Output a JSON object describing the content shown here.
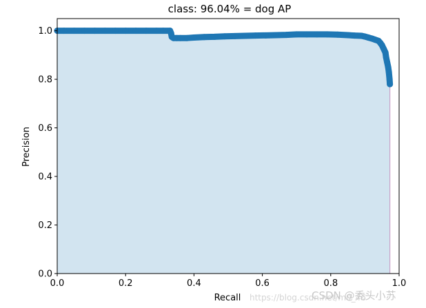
{
  "chart_data": {
    "type": "area",
    "title": "class: 96.04% = dog AP",
    "xlabel": "Recall",
    "ylabel": "Precision",
    "xlim": [
      0.0,
      1.0
    ],
    "ylim": [
      0.0,
      1.05
    ],
    "x_ticks": [
      0.0,
      0.2,
      0.4,
      0.6,
      0.8,
      1.0
    ],
    "y_ticks": [
      0.0,
      0.2,
      0.4,
      0.6,
      0.8,
      1.0
    ],
    "x_tick_labels": [
      "0.0",
      "0.2",
      "0.4",
      "0.6",
      "0.8",
      "1.0"
    ],
    "y_tick_labels": [
      "0.0",
      "0.2",
      "0.4",
      "0.6",
      "0.8",
      "1.0"
    ],
    "grid": false,
    "legend": "none",
    "series": [
      {
        "x": [
          0.0,
          0.02,
          0.05,
          0.08,
          0.11,
          0.14,
          0.17,
          0.2,
          0.23,
          0.26,
          0.29,
          0.31,
          0.33,
          0.333,
          0.335,
          0.34,
          0.35,
          0.36,
          0.38,
          0.4,
          0.43,
          0.46,
          0.49,
          0.52,
          0.55,
          0.58,
          0.61,
          0.64,
          0.67,
          0.7,
          0.73,
          0.76,
          0.79,
          0.82,
          0.85,
          0.87,
          0.89,
          0.9,
          0.91,
          0.92,
          0.93,
          0.94,
          0.945,
          0.95,
          0.955,
          0.96,
          0.962,
          0.965,
          0.968,
          0.97,
          0.972,
          0.973
        ],
        "y": [
          1.0,
          1.0,
          1.0,
          1.0,
          1.0,
          1.0,
          1.0,
          1.0,
          1.0,
          1.0,
          1.0,
          1.0,
          1.0,
          0.99,
          0.975,
          0.97,
          0.97,
          0.97,
          0.97,
          0.972,
          0.974,
          0.975,
          0.977,
          0.978,
          0.979,
          0.98,
          0.981,
          0.982,
          0.983,
          0.985,
          0.985,
          0.985,
          0.985,
          0.984,
          0.982,
          0.98,
          0.979,
          0.976,
          0.972,
          0.968,
          0.963,
          0.958,
          0.95,
          0.94,
          0.925,
          0.91,
          0.89,
          0.87,
          0.85,
          0.83,
          0.8,
          0.78
        ]
      }
    ],
    "colors": {
      "line": "#1f77b4",
      "fill": "#1f77b4",
      "fill_opacity": 0.2,
      "edge": "#c8a2c8"
    }
  },
  "watermark": {
    "url": "https://blog.csdn.net/m0_46",
    "brand": "CSDN @秃头小苏"
  }
}
